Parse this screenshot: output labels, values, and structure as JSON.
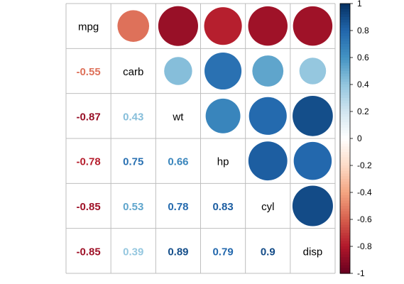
{
  "chart_data": {
    "type": "heatmap",
    "title": "",
    "variables": [
      "mpg",
      "carb",
      "wt",
      "hp",
      "cyl",
      "disp"
    ],
    "matrix": [
      [
        1.0,
        -0.55,
        -0.87,
        -0.78,
        -0.85,
        -0.85
      ],
      [
        -0.55,
        1.0,
        0.43,
        0.75,
        0.53,
        0.39
      ],
      [
        -0.87,
        0.43,
        1.0,
        0.66,
        0.78,
        0.89
      ],
      [
        -0.78,
        0.75,
        0.66,
        1.0,
        0.83,
        0.79
      ],
      [
        -0.85,
        0.53,
        0.78,
        0.83,
        1.0,
        0.9
      ],
      [
        -0.85,
        0.39,
        0.89,
        0.79,
        0.9,
        1.0
      ]
    ],
    "upper": "circle",
    "lower": "number",
    "diagonal": "variable-name",
    "colorbar": {
      "min": -1,
      "max": 1,
      "ticks": [
        1,
        0.8,
        0.6,
        0.4,
        0.2,
        0,
        -0.2,
        -0.4,
        -0.6,
        -0.8,
        -1
      ],
      "tick_labels": [
        "1",
        "0.8",
        "0.6",
        "0.4",
        "0.2",
        "0",
        "-0.2",
        "-0.4",
        "-0.6",
        "-0.8",
        "-1"
      ],
      "colors": [
        "#67001F",
        "#B2182B",
        "#D6604D",
        "#F4A582",
        "#FDDBC7",
        "#FFFFFF",
        "#D1E5F0",
        "#92C5DE",
        "#4393C3",
        "#2166AC",
        "#053061"
      ]
    },
    "grid_color": "#bebebe"
  }
}
